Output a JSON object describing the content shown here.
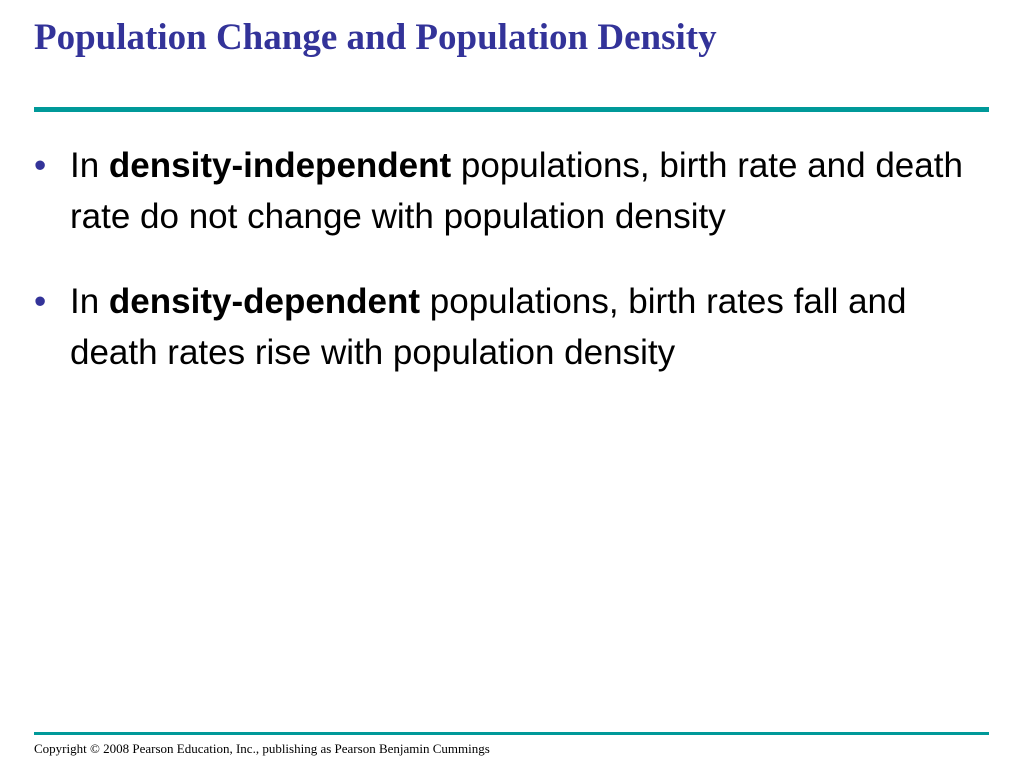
{
  "slide": {
    "title": "Population Change and Population Density",
    "bullets": [
      {
        "prefix": "In ",
        "term": "density-independent",
        "rest": " populations, birth rate and death rate do not change with population density"
      },
      {
        "prefix": "In ",
        "term": "density-dependent",
        "rest": " populations, birth rates fall and death rates rise with population density"
      }
    ],
    "bullet_glyph": "•",
    "footer": "Copyright © 2008 Pearson Education, Inc., publishing as Pearson Benjamin Cummings"
  },
  "colors": {
    "title": "#333399",
    "rule": "#009999",
    "bullet": "#333399",
    "body_text": "#000000",
    "background": "#ffffff"
  }
}
